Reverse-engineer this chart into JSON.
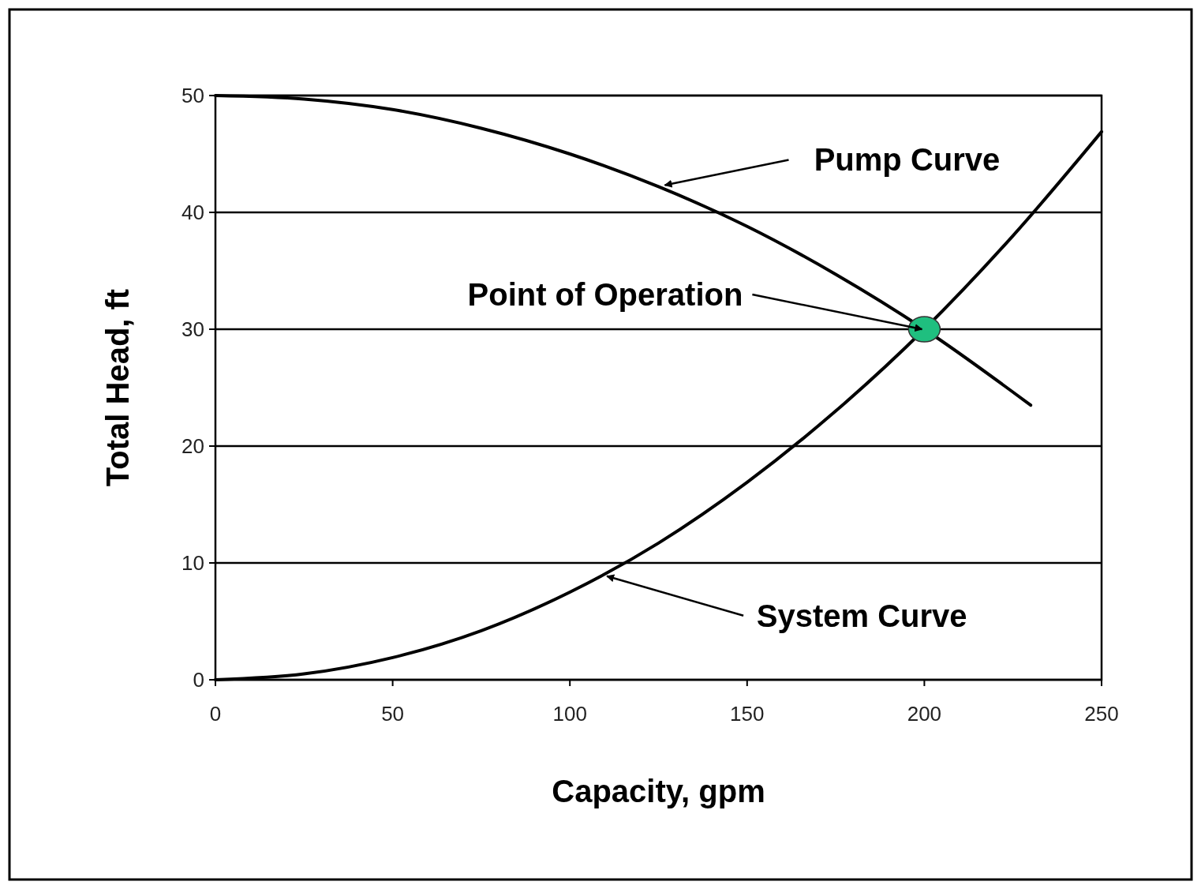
{
  "chart_data": {
    "type": "line",
    "xlabel": "Capacity, gpm",
    "ylabel": "Total Head, ft",
    "xlim": [
      0,
      250
    ],
    "xticks": [
      0,
      50,
      100,
      150,
      200,
      250
    ],
    "ylim": [
      0,
      50
    ],
    "yticks": [
      0,
      10,
      20,
      30,
      40,
      50
    ],
    "grid": "y",
    "line_style": "solid",
    "series": [
      {
        "color": "#000000",
        "x": [
          0,
          25,
          50,
          75,
          100,
          125,
          150,
          175,
          200,
          230
        ],
        "values": [
          50,
          49.7,
          48.8,
          47.2,
          45,
          42.2,
          38.8,
          34.7,
          30,
          23.5
        ],
        "marker": "none"
      },
      {
        "color": "#000000",
        "x": [
          0,
          25,
          50,
          75,
          100,
          125,
          150,
          175,
          200,
          225,
          250
        ],
        "values": [
          0,
          0.5,
          1.9,
          4.2,
          7.5,
          11.7,
          16.9,
          23,
          30,
          38,
          46.9
        ],
        "marker": "none"
      },
      {
        "type": "scatter",
        "color": "#1fbf7f",
        "x": [
          200
        ],
        "values": [
          30
        ],
        "marker": "circle"
      }
    ],
    "annotations": [
      {
        "text": "Pump Curve",
        "x": 125,
        "y": 42.2
      },
      {
        "text": "Point of Operation",
        "x": 200,
        "y": 30
      },
      {
        "text": "System Curve",
        "x": 110,
        "y": 9
      }
    ]
  }
}
